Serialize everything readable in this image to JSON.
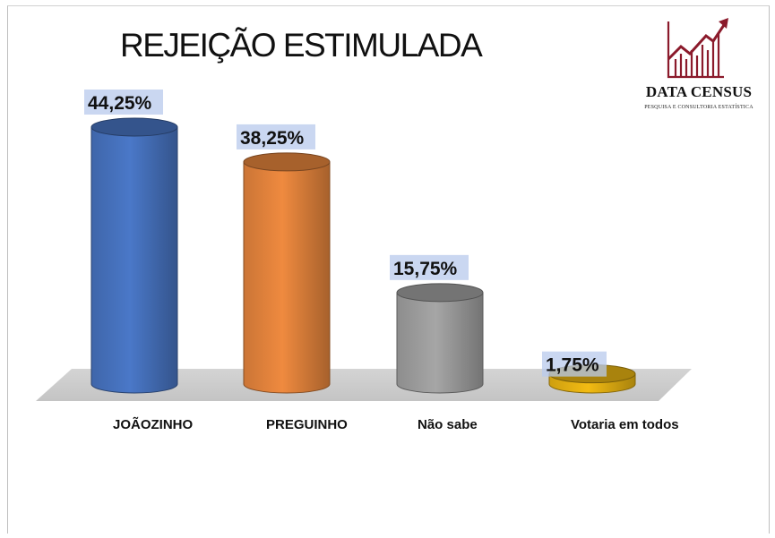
{
  "chart_data": {
    "type": "bar",
    "title": "REJEIÇÃO ESTIMULADA",
    "categories": [
      "JOÃOZINHO",
      "PREGUINHO",
      "Não sabe",
      "Votaria em todos"
    ],
    "values": [
      44.25,
      38.25,
      15.75,
      1.75
    ],
    "value_labels": [
      "44,25%",
      "38,25%",
      "15,75%",
      "1,75%"
    ],
    "ylim": [
      0,
      50
    ],
    "grid": false,
    "legend": "none",
    "colors": [
      "#4a78c8",
      "#ef8a3f",
      "#a6a6a6",
      "#f2bb13"
    ]
  },
  "branding": {
    "logo_name": "DATA CENSUS",
    "logo_tagline": "PESQUISA E CONSULTORIA ESTATÍSTICA",
    "logo_color": "#8b1a2b"
  }
}
